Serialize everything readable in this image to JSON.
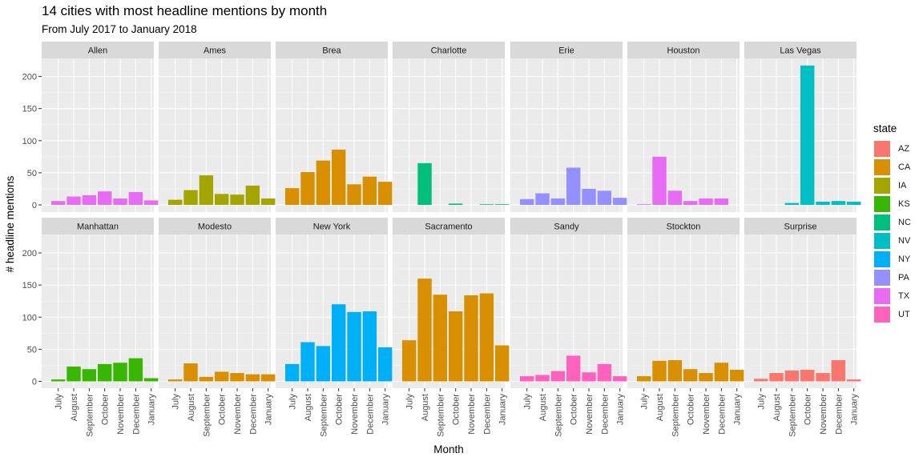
{
  "chart_data": {
    "type": "bar",
    "title": "14 cities with most headline mentions by month",
    "subtitle": "From July 2017 to January 2018",
    "xlabel": "Month",
    "ylabel": "# headline mentions",
    "ylim": [
      0,
      220
    ],
    "yticks": [
      0,
      50,
      100,
      150,
      200
    ],
    "categories": [
      "July",
      "August",
      "September",
      "October",
      "November",
      "December",
      "January"
    ],
    "legend_title": "state",
    "legend_position": "right",
    "legend": [
      {
        "state": "AZ",
        "color": "#F8766D"
      },
      {
        "state": "CA",
        "color": "#D89000"
      },
      {
        "state": "IA",
        "color": "#A3A500"
      },
      {
        "state": "KS",
        "color": "#39B600"
      },
      {
        "state": "NC",
        "color": "#00BF7D"
      },
      {
        "state": "NV",
        "color": "#00BFC4"
      },
      {
        "state": "NY",
        "color": "#00B0F6"
      },
      {
        "state": "PA",
        "color": "#9590FF"
      },
      {
        "state": "TX",
        "color": "#E76BF3"
      },
      {
        "state": "UT",
        "color": "#FF62BC"
      }
    ],
    "panels": [
      {
        "city": "Allen",
        "state": "TX",
        "values": [
          6,
          13,
          15,
          21,
          10,
          20,
          7
        ]
      },
      {
        "city": "Ames",
        "state": "IA",
        "values": [
          8,
          23,
          46,
          17,
          16,
          30,
          10
        ]
      },
      {
        "city": "Brea",
        "state": "CA",
        "values": [
          26,
          51,
          69,
          86,
          32,
          44,
          36
        ]
      },
      {
        "city": "Charlotte",
        "state": "NC",
        "values": [
          null,
          65,
          null,
          2,
          null,
          1,
          1
        ]
      },
      {
        "city": "Erie",
        "state": "PA",
        "values": [
          9,
          18,
          10,
          58,
          25,
          22,
          11
        ]
      },
      {
        "city": "Houston",
        "state": "TX",
        "values": [
          1,
          75,
          22,
          6,
          10,
          10,
          null
        ]
      },
      {
        "city": "Las Vegas",
        "state": "NV",
        "values": [
          null,
          null,
          3,
          217,
          5,
          6,
          5
        ]
      },
      {
        "city": "Manhattan",
        "state": "KS",
        "values": [
          3,
          23,
          19,
          27,
          29,
          36,
          5
        ]
      },
      {
        "city": "Modesto",
        "state": "CA",
        "values": [
          3,
          28,
          7,
          15,
          13,
          11,
          11
        ]
      },
      {
        "city": "New York",
        "state": "NY",
        "values": [
          27,
          61,
          55,
          120,
          108,
          109,
          53
        ]
      },
      {
        "city": "Sacramento",
        "state": "CA",
        "values": [
          64,
          160,
          135,
          109,
          134,
          137,
          56
        ]
      },
      {
        "city": "Sandy",
        "state": "UT",
        "values": [
          8,
          10,
          16,
          40,
          14,
          27,
          8
        ]
      },
      {
        "city": "Stockton",
        "state": "CA",
        "values": [
          8,
          32,
          33,
          19,
          13,
          29,
          18
        ]
      },
      {
        "city": "Surprise",
        "state": "AZ",
        "values": [
          4,
          13,
          17,
          18,
          13,
          33,
          3
        ]
      }
    ]
  }
}
